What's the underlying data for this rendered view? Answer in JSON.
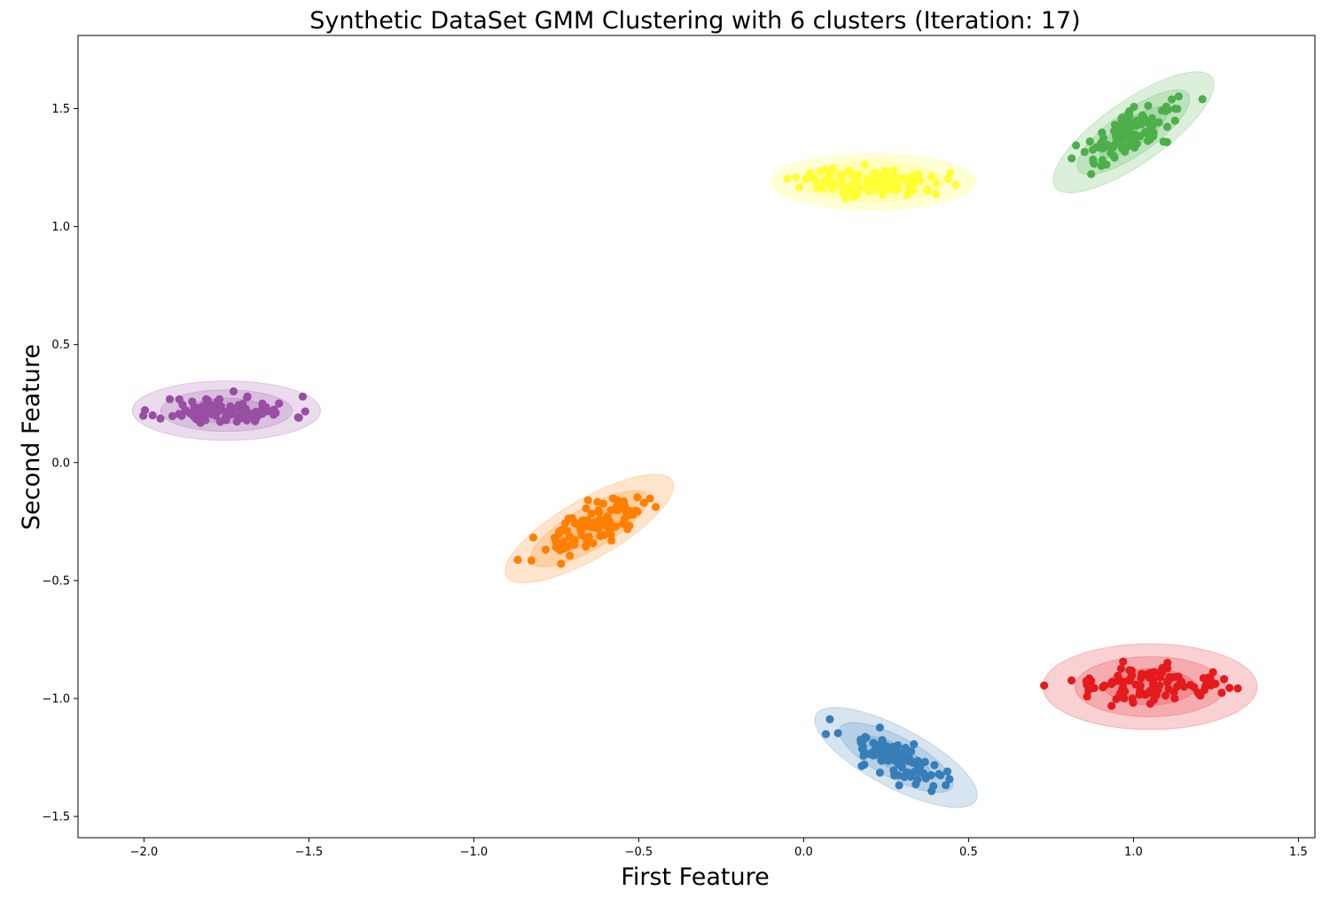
{
  "chart_data": {
    "type": "scatter",
    "title": "Synthetic DataSet GMM Clustering with 6 clusters (Iteration: 17)",
    "xlabel": "First Feature",
    "ylabel": "Second Feature",
    "xlim": [
      -2.2,
      1.55
    ],
    "ylim": [
      -1.59,
      1.81
    ],
    "xticks": [
      -2.0,
      -1.5,
      -1.0,
      -0.5,
      0.0,
      0.5,
      1.0,
      1.5
    ],
    "xtick_labels": [
      "−2.0",
      "−1.5",
      "−1.0",
      "−0.5",
      "0.0",
      "0.5",
      "1.0",
      "1.5"
    ],
    "yticks": [
      -1.5,
      -1.0,
      -0.5,
      0.0,
      0.5,
      1.0,
      1.5
    ],
    "ytick_labels": [
      "−1.5",
      "−1.0",
      "−0.5",
      "0.0",
      "0.5",
      "1.0",
      "1.5"
    ],
    "grid": false,
    "clusters": [
      {
        "color": "#984ea3",
        "center": [
          -1.75,
          0.22
        ],
        "ellipse_width": 0.57,
        "ellipse_height": 0.18,
        "angle_deg": 0,
        "spread": [
          0.1,
          0.03
        ],
        "correlation": 0.0,
        "n_points": 100,
        "seed": 11
      },
      {
        "color": "#ff7f00",
        "center": [
          -0.65,
          -0.28
        ],
        "ellipse_width": 0.58,
        "ellipse_height": 0.18,
        "angle_deg": 30,
        "spread": [
          0.08,
          0.06
        ],
        "correlation": 0.75,
        "n_points": 100,
        "seed": 23
      },
      {
        "color": "#ffff33",
        "center": [
          0.21,
          1.19
        ],
        "ellipse_width": 0.62,
        "ellipse_height": 0.17,
        "angle_deg": 0,
        "spread": [
          0.11,
          0.03
        ],
        "correlation": 0.0,
        "n_points": 100,
        "seed": 37
      },
      {
        "color": "#4daf4a",
        "center": [
          1.0,
          1.4
        ],
        "ellipse_width": 0.58,
        "ellipse_height": 0.19,
        "angle_deg": 35,
        "spread": [
          0.08,
          0.07
        ],
        "correlation": 0.78,
        "n_points": 100,
        "seed": 41
      },
      {
        "color": "#377eb8",
        "center": [
          0.28,
          -1.25
        ],
        "ellipse_width": 0.55,
        "ellipse_height": 0.18,
        "angle_deg": -28,
        "spread": [
          0.08,
          0.06
        ],
        "correlation": -0.75,
        "n_points": 100,
        "seed": 53
      },
      {
        "color": "#e41a1c",
        "center": [
          1.05,
          -0.95
        ],
        "ellipse_width": 0.65,
        "ellipse_height": 0.26,
        "angle_deg": 0,
        "spread": [
          0.11,
          0.04
        ],
        "correlation": 0.0,
        "n_points": 100,
        "seed": 67
      }
    ]
  }
}
